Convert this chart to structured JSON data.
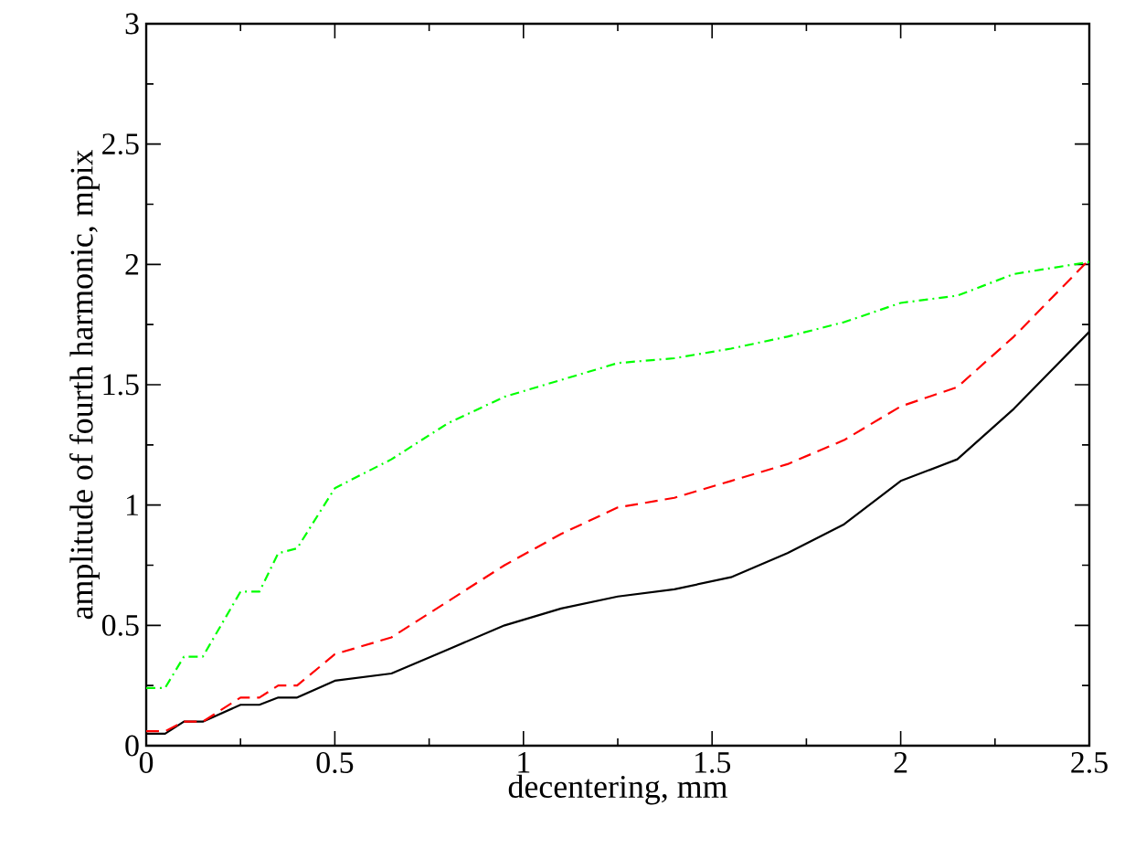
{
  "chart_data": {
    "type": "line",
    "xlabel": "decentering, mm",
    "ylabel": "amplitude of fourth harmonic, mpix",
    "x": [
      0,
      0.05,
      0.1,
      0.15,
      0.25,
      0.3,
      0.35,
      0.4,
      0.5,
      0.65,
      0.8,
      0.95,
      1.1,
      1.25,
      1.4,
      1.55,
      1.7,
      1.85,
      2.0,
      2.15,
      2.3,
      2.5
    ],
    "series": [
      {
        "color": "#000000",
        "line_style": "solid",
        "values": [
          0.05,
          0.05,
          0.1,
          0.1,
          0.17,
          0.17,
          0.2,
          0.2,
          0.27,
          0.3,
          0.4,
          0.5,
          0.57,
          0.62,
          0.65,
          0.7,
          0.8,
          0.92,
          1.1,
          1.19,
          1.4,
          1.72
        ]
      },
      {
        "color": "#ff0000",
        "line_style": "dashed",
        "values": [
          0.06,
          0.06,
          0.1,
          0.1,
          0.2,
          0.2,
          0.25,
          0.25,
          0.38,
          0.45,
          0.6,
          0.75,
          0.88,
          0.99,
          1.03,
          1.1,
          1.17,
          1.27,
          1.41,
          1.49,
          1.7,
          2.02
        ]
      },
      {
        "color": "#00ff00",
        "line_style": "dashdot",
        "values": [
          0.24,
          0.24,
          0.37,
          0.37,
          0.64,
          0.64,
          0.8,
          0.82,
          1.07,
          1.19,
          1.34,
          1.45,
          1.52,
          1.59,
          1.61,
          1.65,
          1.7,
          1.76,
          1.84,
          1.87,
          1.96,
          2.01
        ]
      }
    ],
    "xlim": [
      0,
      2.5
    ],
    "ylim": [
      0,
      3
    ],
    "xticks": [
      0,
      0.5,
      1,
      1.5,
      2,
      2.5
    ],
    "yticks": [
      0,
      0.5,
      1,
      1.5,
      2,
      2.5,
      3
    ],
    "grid": false,
    "marker": "none"
  }
}
